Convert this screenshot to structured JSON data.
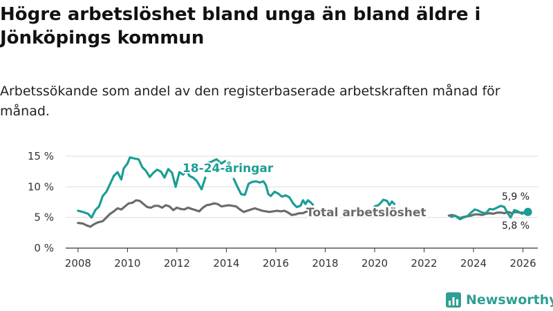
{
  "title": "Högre arbetslöshet bland unga än bland äldre i Jönköpings kommun",
  "subtitle": "Arbetssökande som andel av den registerbaserade arbetskraften månad för månad.",
  "brand": {
    "name": "Newsworthy",
    "color": "#2e9e93",
    "logo_icon": "bar-chart-logo-icon"
  },
  "colors": {
    "youth": "#1a9e94",
    "total": "#6b6b6b",
    "grid": "#dddddd",
    "axis": "#333333"
  },
  "chart_data": {
    "type": "line",
    "title": "Högre arbetslöshet bland unga än bland äldre i Jönköpings kommun",
    "xlabel": "",
    "ylabel": "",
    "xlim": [
      2007.5,
      2026.6
    ],
    "ylim": [
      0,
      15
    ],
    "grid": true,
    "yticks": [
      0,
      5,
      10,
      15
    ],
    "yticklabels": [
      "0 %",
      "5 %",
      "10 %",
      "15 %"
    ],
    "xticks": [
      2008,
      2010,
      2012,
      2014,
      2016,
      2018,
      2020,
      2022,
      2024,
      2026
    ],
    "xticklabels": [
      "2008",
      "2010",
      "2012",
      "2014",
      "2016",
      "2018",
      "2020",
      "2022",
      "2024",
      "2026"
    ],
    "series": [
      {
        "name": "18-24-åringar",
        "label": "18-24-åringar",
        "segments": [
          [
            [
              2008.0,
              6.1
            ],
            [
              2008.2,
              5.9
            ],
            [
              2008.4,
              5.6
            ],
            [
              2008.55,
              5.0
            ],
            [
              2008.7,
              6.2
            ],
            [
              2008.85,
              6.8
            ],
            [
              2009.0,
              8.5
            ],
            [
              2009.15,
              9.2
            ],
            [
              2009.3,
              10.5
            ],
            [
              2009.45,
              11.8
            ],
            [
              2009.6,
              12.4
            ],
            [
              2009.75,
              11.2
            ],
            [
              2009.85,
              13.0
            ],
            [
              2010.0,
              13.8
            ],
            [
              2010.1,
              14.8
            ],
            [
              2010.3,
              14.6
            ],
            [
              2010.45,
              14.5
            ],
            [
              2010.6,
              13.2
            ],
            [
              2010.75,
              12.6
            ],
            [
              2010.9,
              11.6
            ],
            [
              2011.05,
              12.3
            ],
            [
              2011.2,
              12.8
            ],
            [
              2011.35,
              12.5
            ],
            [
              2011.5,
              11.5
            ],
            [
              2011.65,
              12.9
            ],
            [
              2011.8,
              12.3
            ],
            [
              2011.95,
              10.0
            ],
            [
              2012.1,
              12.4
            ],
            [
              2012.25,
              12.0
            ],
            [
              2012.4,
              12.8
            ],
            [
              2012.5,
              11.8
            ],
            [
              2012.65,
              11.5
            ],
            [
              2012.8,
              11.0
            ],
            [
              2013.0,
              9.6
            ],
            [
              2013.15,
              11.5
            ]
          ],
          [
            [
              2013.2,
              13.8
            ],
            [
              2013.4,
              14.1
            ],
            [
              2013.6,
              14.5
            ],
            [
              2013.8,
              13.8
            ],
            [
              2013.95,
              14.2
            ]
          ],
          [
            [
              2014.3,
              11.3
            ],
            [
              2014.45,
              10.0
            ],
            [
              2014.6,
              8.8
            ],
            [
              2014.75,
              8.7
            ],
            [
              2014.9,
              10.5
            ],
            [
              2015.05,
              10.8
            ],
            [
              2015.2,
              10.9
            ],
            [
              2015.35,
              10.7
            ],
            [
              2015.5,
              10.9
            ],
            [
              2015.6,
              10.3
            ],
            [
              2015.7,
              8.8
            ],
            [
              2015.8,
              8.5
            ],
            [
              2015.95,
              9.2
            ],
            [
              2016.1,
              8.9
            ],
            [
              2016.25,
              8.4
            ],
            [
              2016.4,
              8.6
            ],
            [
              2016.55,
              8.3
            ],
            [
              2016.7,
              7.3
            ],
            [
              2016.85,
              6.7
            ],
            [
              2017.0,
              6.9
            ],
            [
              2017.1,
              7.8
            ],
            [
              2017.2,
              7.2
            ],
            [
              2017.3,
              7.8
            ],
            [
              2017.4,
              7.5
            ],
            [
              2017.5,
              7.1
            ]
          ],
          [
            [
              2020.0,
              6.8
            ],
            [
              2020.15,
              7.0
            ],
            [
              2020.25,
              7.4
            ],
            [
              2020.35,
              7.9
            ],
            [
              2020.5,
              7.7
            ],
            [
              2020.6,
              7.0
            ],
            [
              2020.7,
              7.6
            ],
            [
              2020.8,
              7.2
            ]
          ],
          [
            [
              2023.1,
              5.1
            ],
            [
              2023.25,
              5.3
            ],
            [
              2023.45,
              4.7
            ],
            [
              2023.6,
              5.0
            ],
            [
              2023.75,
              5.2
            ],
            [
              2023.9,
              5.8
            ],
            [
              2024.05,
              6.3
            ],
            [
              2024.2,
              6.1
            ],
            [
              2024.35,
              5.8
            ],
            [
              2024.5,
              5.7
            ],
            [
              2024.65,
              6.4
            ],
            [
              2024.8,
              6.3
            ],
            [
              2024.95,
              6.6
            ],
            [
              2025.1,
              6.9
            ],
            [
              2025.25,
              6.7
            ],
            [
              2025.35,
              5.9
            ],
            [
              2025.5,
              5.0
            ],
            [
              2025.65,
              6.2
            ],
            [
              2025.8,
              6.0
            ],
            [
              2025.95,
              5.6
            ],
            [
              2026.1,
              5.8
            ],
            [
              2026.2,
              5.9
            ]
          ]
        ]
      },
      {
        "name": "Total arbetslöshet",
        "label": "Total arbetslöshet",
        "segments": [
          [
            [
              2008.0,
              4.1
            ],
            [
              2008.2,
              4.0
            ],
            [
              2008.35,
              3.7
            ],
            [
              2008.5,
              3.5
            ],
            [
              2008.65,
              3.9
            ],
            [
              2008.8,
              4.2
            ],
            [
              2009.0,
              4.4
            ],
            [
              2009.15,
              5.0
            ],
            [
              2009.3,
              5.6
            ],
            [
              2009.45,
              6.0
            ],
            [
              2009.6,
              6.5
            ],
            [
              2009.75,
              6.3
            ],
            [
              2009.9,
              6.8
            ],
            [
              2010.05,
              7.3
            ],
            [
              2010.2,
              7.4
            ],
            [
              2010.35,
              7.8
            ],
            [
              2010.5,
              7.7
            ],
            [
              2010.65,
              7.2
            ],
            [
              2010.8,
              6.7
            ],
            [
              2010.95,
              6.6
            ],
            [
              2011.1,
              6.9
            ],
            [
              2011.25,
              6.9
            ],
            [
              2011.4,
              6.6
            ],
            [
              2011.55,
              7.0
            ],
            [
              2011.7,
              6.8
            ],
            [
              2011.85,
              6.2
            ],
            [
              2012.0,
              6.6
            ],
            [
              2012.15,
              6.4
            ],
            [
              2012.3,
              6.3
            ],
            [
              2012.45,
              6.6
            ],
            [
              2012.6,
              6.4
            ],
            [
              2012.75,
              6.2
            ],
            [
              2012.9,
              6.0
            ],
            [
              2013.05,
              6.6
            ],
            [
              2013.2,
              7.0
            ],
            [
              2013.35,
              7.1
            ],
            [
              2013.5,
              7.3
            ],
            [
              2013.65,
              7.2
            ],
            [
              2013.8,
              6.8
            ],
            [
              2013.95,
              6.9
            ],
            [
              2014.1,
              7.0
            ],
            [
              2014.25,
              6.9
            ],
            [
              2014.4,
              6.8
            ],
            [
              2014.55,
              6.3
            ],
            [
              2014.7,
              5.9
            ],
            [
              2014.85,
              6.1
            ],
            [
              2015.0,
              6.3
            ],
            [
              2015.15,
              6.5
            ],
            [
              2015.3,
              6.3
            ],
            [
              2015.45,
              6.1
            ],
            [
              2015.6,
              6.0
            ],
            [
              2015.75,
              5.9
            ],
            [
              2015.9,
              6.0
            ],
            [
              2016.05,
              6.1
            ],
            [
              2016.2,
              6.0
            ],
            [
              2016.35,
              6.1
            ],
            [
              2016.5,
              5.8
            ],
            [
              2016.65,
              5.4
            ],
            [
              2016.8,
              5.5
            ],
            [
              2016.95,
              5.7
            ],
            [
              2017.1,
              5.7
            ],
            [
              2017.2,
              5.9
            ],
            [
              2017.35,
              6.1
            ],
            [
              2017.5,
              5.9
            ],
            [
              2017.65,
              5.7
            ]
          ],
          [
            [
              2023.0,
              5.3
            ],
            [
              2023.15,
              5.4
            ],
            [
              2023.3,
              5.2
            ],
            [
              2023.45,
              4.9
            ],
            [
              2023.6,
              5.1
            ],
            [
              2023.75,
              5.2
            ],
            [
              2023.9,
              5.3
            ],
            [
              2024.05,
              5.5
            ],
            [
              2024.2,
              5.5
            ],
            [
              2024.35,
              5.4
            ],
            [
              2024.5,
              5.6
            ],
            [
              2024.65,
              5.7
            ],
            [
              2024.8,
              5.6
            ],
            [
              2024.95,
              5.8
            ],
            [
              2025.1,
              5.8
            ],
            [
              2025.25,
              5.7
            ],
            [
              2025.4,
              5.9
            ],
            [
              2025.55,
              5.7
            ],
            [
              2025.7,
              5.9
            ],
            [
              2025.85,
              5.8
            ],
            [
              2026.0,
              5.8
            ],
            [
              2026.2,
              5.8
            ]
          ]
        ]
      }
    ],
    "annotations": [
      {
        "text": "5,9 %",
        "series": "18-24-åringar",
        "value": 5.9
      },
      {
        "text": "5,8 %",
        "series": "Total arbetslöshet",
        "value": 5.8
      }
    ]
  }
}
